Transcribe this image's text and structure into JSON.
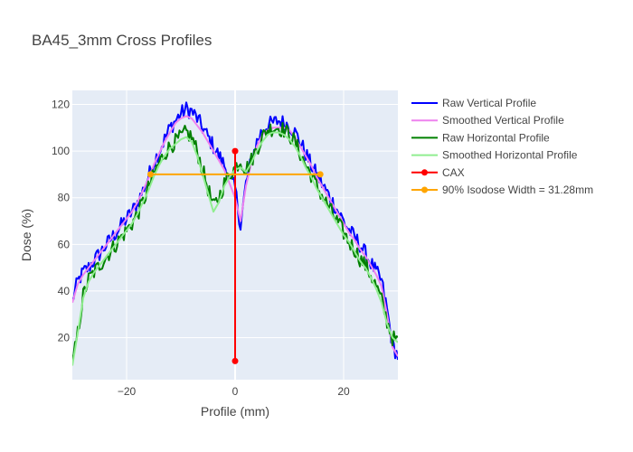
{
  "chart_data": {
    "type": "line",
    "title": "BA45_3mm Cross Profiles",
    "xlabel": "Profile (mm)",
    "ylabel": "Dose (%)",
    "xlim": [
      -30,
      30
    ],
    "ylim": [
      2,
      126
    ],
    "x_ticks": [
      -20,
      0,
      20
    ],
    "y_ticks": [
      20,
      40,
      60,
      80,
      100,
      120
    ],
    "grid": true,
    "legend_position": "right",
    "series": [
      {
        "name": "Raw Vertical Profile",
        "color": "#0000ff",
        "noise": 3.5,
        "x": [
          -30,
          -29,
          -28,
          -27,
          -26,
          -25,
          -24,
          -23,
          -22,
          -21,
          -20,
          -19,
          -18,
          -17,
          -16,
          -15,
          -14,
          -13,
          -12,
          -11,
          -10,
          -9,
          -8,
          -7,
          -6,
          -5,
          -4,
          -3,
          -2,
          -1,
          0,
          1,
          2,
          3,
          4,
          5,
          6,
          7,
          8,
          9,
          10,
          11,
          12,
          13,
          14,
          15,
          16,
          17,
          18,
          19,
          20,
          21,
          22,
          23,
          24,
          25,
          26,
          27,
          28,
          29,
          30
        ],
        "y": [
          36,
          44,
          48,
          50,
          53,
          56,
          59,
          62,
          65,
          68,
          71,
          74,
          78,
          83,
          89,
          95,
          100,
          105,
          110,
          113,
          116,
          118,
          117,
          114,
          110,
          106,
          102,
          98,
          94,
          88,
          84,
          68,
          86,
          96,
          104,
          109,
          111,
          112,
          113,
          112,
          111,
          108,
          104,
          99,
          94,
          90,
          86,
          82,
          78,
          74,
          70,
          66,
          63,
          60,
          56,
          52,
          48,
          44,
          32,
          17,
          12
        ]
      },
      {
        "name": "Smoothed Vertical Profile",
        "color": "#ee82ee",
        "noise": 0,
        "x": [
          -30,
          -29,
          -28,
          -27,
          -26,
          -25,
          -24,
          -23,
          -22,
          -21,
          -20,
          -19,
          -18,
          -17,
          -16,
          -15,
          -14,
          -13,
          -12,
          -11,
          -10,
          -9,
          -8,
          -7,
          -6,
          -5,
          -4,
          -3,
          -2,
          -1,
          0,
          1,
          2,
          3,
          4,
          5,
          6,
          7,
          8,
          9,
          10,
          11,
          12,
          13,
          14,
          15,
          16,
          17,
          18,
          19,
          20,
          21,
          22,
          23,
          24,
          25,
          26,
          27,
          28,
          29,
          30
        ],
        "y": [
          35,
          43,
          47,
          50,
          53,
          56,
          59,
          62,
          65,
          68,
          71,
          74,
          78,
          83,
          88,
          94,
          99,
          104,
          108,
          112,
          114,
          115,
          114,
          111,
          108,
          104,
          100,
          96,
          92,
          86,
          80,
          70,
          85,
          95,
          102,
          107,
          109,
          110,
          110,
          110,
          109,
          106,
          102,
          98,
          94,
          89,
          85,
          81,
          77,
          73,
          69,
          65,
          62,
          58,
          55,
          51,
          47,
          42,
          30,
          16,
          12
        ]
      },
      {
        "name": "Raw Horizontal Profile",
        "color": "#008000",
        "noise": 3.5,
        "x": [
          -30,
          -29,
          -28,
          -27,
          -26,
          -25,
          -24,
          -23,
          -22,
          -21,
          -20,
          -19,
          -18,
          -17,
          -16,
          -15,
          -14,
          -13,
          -12,
          -11,
          -10,
          -9,
          -8,
          -7,
          -6,
          -5,
          -4,
          -3,
          -2,
          -1,
          0,
          1,
          2,
          3,
          4,
          5,
          6,
          7,
          8,
          9,
          10,
          11,
          12,
          13,
          14,
          15,
          16,
          17,
          18,
          19,
          20,
          21,
          22,
          23,
          24,
          25,
          26,
          27,
          28,
          29,
          30
        ],
        "y": [
          8,
          22,
          38,
          45,
          48,
          51,
          54,
          57,
          60,
          63,
          66,
          69,
          73,
          78,
          84,
          90,
          95,
          99,
          102,
          104,
          106,
          108,
          106,
          100,
          92,
          84,
          76,
          80,
          86,
          90,
          93,
          96,
          92,
          96,
          101,
          106,
          109,
          110,
          110,
          109,
          107,
          104,
          99,
          94,
          90,
          85,
          81,
          77,
          73,
          69,
          65,
          61,
          58,
          54,
          51,
          47,
          42,
          36,
          27,
          20,
          18
        ]
      },
      {
        "name": "Smoothed Horizontal Profile",
        "color": "#90ee90",
        "noise": 0,
        "x": [
          -30,
          -29,
          -28,
          -27,
          -26,
          -25,
          -24,
          -23,
          -22,
          -21,
          -20,
          -19,
          -18,
          -17,
          -16,
          -15,
          -14,
          -13,
          -12,
          -11,
          -10,
          -9,
          -8,
          -7,
          -6,
          -5,
          -4,
          -3,
          -2,
          -1,
          0,
          1,
          2,
          3,
          4,
          5,
          6,
          7,
          8,
          9,
          10,
          11,
          12,
          13,
          14,
          15,
          16,
          17,
          18,
          19,
          20,
          21,
          22,
          23,
          24,
          25,
          26,
          27,
          28,
          29,
          30
        ],
        "y": [
          8,
          22,
          37,
          44,
          48,
          51,
          54,
          57,
          60,
          63,
          66,
          69,
          73,
          78,
          83,
          89,
          94,
          98,
          101,
          103,
          105,
          106,
          104,
          98,
          90,
          82,
          74,
          78,
          85,
          89,
          92,
          93,
          91,
          95,
          100,
          104,
          107,
          108,
          108,
          107,
          105,
          102,
          98,
          93,
          89,
          84,
          80,
          76,
          72,
          68,
          64,
          61,
          57,
          53,
          50,
          46,
          41,
          35,
          26,
          20,
          18
        ]
      },
      {
        "name": "CAX",
        "color": "#ff0000",
        "markers": true,
        "noise": 0,
        "x": [
          0,
          0
        ],
        "y": [
          100,
          10
        ]
      },
      {
        "name": "90% Isodose Width = 31.28mm",
        "color": "#ffa500",
        "markers": true,
        "noise": 0,
        "x": [
          -15.6,
          15.7
        ],
        "y": [
          90,
          90
        ]
      }
    ]
  }
}
